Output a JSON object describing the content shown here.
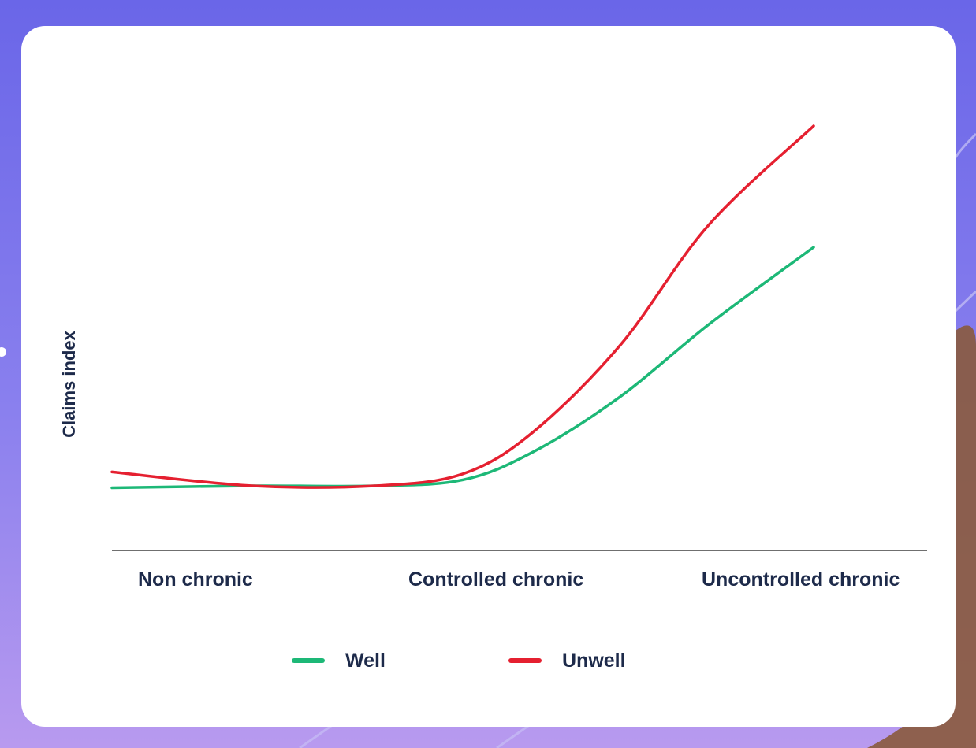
{
  "chart_data": {
    "type": "line",
    "title": "",
    "ylabel": "Claims index",
    "xlabel": "",
    "categories": [
      "Non chronic",
      "Controlled chronic",
      "Uncontrolled chronic"
    ],
    "x_range": [
      0,
      2
    ],
    "ylim": [
      0,
      10
    ],
    "grid": false,
    "legend_position": "bottom",
    "series": [
      {
        "name": "Well",
        "color": "#1db877",
        "points": [
          [
            0,
            0.9
          ],
          [
            0.4,
            0.95
          ],
          [
            0.75,
            0.95
          ],
          [
            1.0,
            1.1
          ],
          [
            1.2,
            1.8
          ],
          [
            1.45,
            3.2
          ],
          [
            1.7,
            5.0
          ],
          [
            2.0,
            6.95
          ]
        ]
      },
      {
        "name": "Unwell",
        "color": "#e52030",
        "points": [
          [
            0,
            1.3
          ],
          [
            0.4,
            0.95
          ],
          [
            0.75,
            0.95
          ],
          [
            1.0,
            1.25
          ],
          [
            1.2,
            2.3
          ],
          [
            1.45,
            4.5
          ],
          [
            1.7,
            7.5
          ],
          [
            2.0,
            10.0
          ]
        ]
      }
    ]
  }
}
